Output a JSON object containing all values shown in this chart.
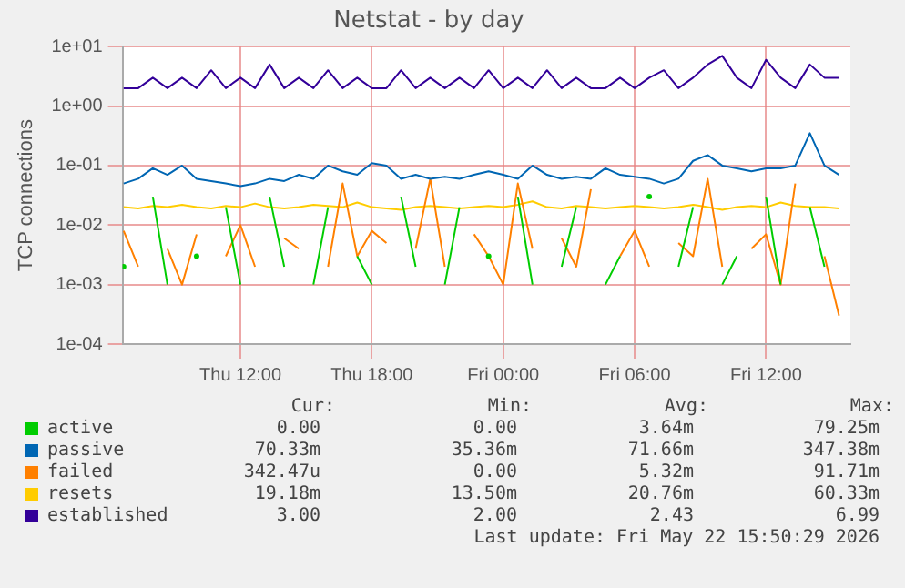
{
  "chart_data": {
    "type": "line",
    "title": "Netstat - by day",
    "ylabel": "TCP connections",
    "log": "y",
    "grid": true,
    "legend": "bottom",
    "x": [
      "2026-05-21T06:40",
      "2026-05-21T07:20",
      "2026-05-21T08:00",
      "2026-05-21T08:40",
      "2026-05-21T09:20",
      "2026-05-21T10:00",
      "2026-05-21T10:40",
      "2026-05-21T11:20",
      "2026-05-21T12:00",
      "2026-05-21T12:40",
      "2026-05-21T13:20",
      "2026-05-21T14:00",
      "2026-05-21T14:40",
      "2026-05-21T15:20",
      "2026-05-21T16:00",
      "2026-05-21T16:40",
      "2026-05-21T17:20",
      "2026-05-21T18:00",
      "2026-05-21T18:40",
      "2026-05-21T19:20",
      "2026-05-21T20:00",
      "2026-05-21T20:40",
      "2026-05-21T21:20",
      "2026-05-21T22:00",
      "2026-05-21T22:40",
      "2026-05-21T23:20",
      "2026-05-22T00:00",
      "2026-05-22T00:40",
      "2026-05-22T01:20",
      "2026-05-22T02:00",
      "2026-05-22T02:40",
      "2026-05-22T03:20",
      "2026-05-22T04:00",
      "2026-05-22T04:40",
      "2026-05-22T05:20",
      "2026-05-22T06:00",
      "2026-05-22T06:40",
      "2026-05-22T07:20",
      "2026-05-22T08:00",
      "2026-05-22T08:40",
      "2026-05-22T09:20",
      "2026-05-22T10:00",
      "2026-05-22T10:40",
      "2026-05-22T11:20",
      "2026-05-22T12:00",
      "2026-05-22T12:40",
      "2026-05-22T13:20",
      "2026-05-22T14:00",
      "2026-05-22T14:40",
      "2026-05-22T15:20"
    ],
    "xlim": [
      "2026-05-21T06:37",
      "2026-05-22T15:51"
    ],
    "xticks": [
      {
        "value": "2026-05-21T12:00",
        "label": "Thu 12:00"
      },
      {
        "value": "2026-05-21T18:00",
        "label": "Thu 18:00"
      },
      {
        "value": "2026-05-22T00:00",
        "label": "Fri 00:00"
      },
      {
        "value": "2026-05-22T06:00",
        "label": "Fri 06:00"
      },
      {
        "value": "2026-05-22T12:00",
        "label": "Fri 12:00"
      }
    ],
    "ylim": [
      0.0001,
      10
    ],
    "yticks": [
      {
        "value": 0.0001,
        "label": "1e-04"
      },
      {
        "value": 0.001,
        "label": "1e-03"
      },
      {
        "value": 0.01,
        "label": "1e-02"
      },
      {
        "value": 0.1,
        "label": "1e-01"
      },
      {
        "value": 1,
        "label": "1e+00"
      },
      {
        "value": 10,
        "label": "1e+01"
      }
    ],
    "series": [
      {
        "name": "active",
        "color": "#00cc00",
        "values": [
          0.002,
          null,
          0.03,
          0.001,
          null,
          0.003,
          null,
          0.02,
          0.001,
          null,
          0.03,
          0.002,
          null,
          0.001,
          0.02,
          null,
          0.003,
          0.001,
          null,
          0.03,
          0.002,
          null,
          0.001,
          0.02,
          null,
          0.003,
          null,
          0.03,
          0.001,
          null,
          0.002,
          0.02,
          null,
          0.001,
          0.003,
          null,
          0.03,
          null,
          0.002,
          0.02,
          null,
          0.001,
          0.003,
          null,
          0.03,
          0.001,
          null,
          0.02,
          0.002,
          null
        ]
      },
      {
        "name": "passive",
        "color": "#0066b3",
        "values": [
          0.05,
          0.06,
          0.09,
          0.07,
          0.1,
          0.06,
          0.055,
          0.05,
          0.045,
          0.05,
          0.06,
          0.055,
          0.07,
          0.06,
          0.1,
          0.08,
          0.07,
          0.11,
          0.1,
          0.06,
          0.07,
          0.06,
          0.065,
          0.06,
          0.07,
          0.08,
          0.07,
          0.06,
          0.1,
          0.07,
          0.06,
          0.065,
          0.06,
          0.09,
          0.07,
          0.065,
          0.06,
          0.05,
          0.06,
          0.12,
          0.15,
          0.1,
          0.09,
          0.08,
          0.09,
          0.09,
          0.1,
          0.35,
          0.1,
          0.07
        ]
      },
      {
        "name": "failed",
        "color": "#ff8000",
        "values": [
          0.008,
          0.002,
          null,
          0.004,
          0.001,
          0.007,
          null,
          0.003,
          0.01,
          0.002,
          null,
          0.006,
          0.004,
          null,
          0.002,
          0.05,
          0.003,
          0.008,
          0.005,
          null,
          0.004,
          0.06,
          0.002,
          null,
          0.007,
          0.003,
          0.001,
          0.05,
          0.004,
          null,
          0.006,
          0.002,
          0.04,
          null,
          0.003,
          0.008,
          0.002,
          null,
          0.005,
          0.003,
          0.06,
          0.002,
          null,
          0.004,
          0.007,
          0.001,
          0.05,
          null,
          0.003,
          0.0003
        ]
      },
      {
        "name": "resets",
        "color": "#ffcc00",
        "values": [
          0.02,
          0.019,
          0.021,
          0.02,
          0.022,
          0.02,
          0.019,
          0.021,
          0.02,
          0.023,
          0.02,
          0.019,
          0.02,
          0.022,
          0.021,
          0.02,
          0.024,
          0.02,
          0.019,
          0.018,
          0.02,
          0.021,
          0.02,
          0.019,
          0.02,
          0.021,
          0.02,
          0.022,
          0.025,
          0.02,
          0.019,
          0.021,
          0.02,
          0.019,
          0.02,
          0.021,
          0.02,
          0.019,
          0.02,
          0.022,
          0.02,
          0.018,
          0.02,
          0.021,
          0.02,
          0.024,
          0.021,
          0.02,
          0.02,
          0.019
        ]
      },
      {
        "name": "established",
        "color": "#330099",
        "values": [
          2,
          2,
          3,
          2,
          3,
          2,
          4,
          2,
          3,
          2,
          5,
          2,
          3,
          2,
          4,
          2,
          3,
          2,
          2,
          4,
          2,
          3,
          2,
          3,
          2,
          4,
          2,
          3,
          2,
          4,
          2,
          3,
          2,
          2,
          3,
          2,
          3,
          4,
          2,
          3,
          5,
          7,
          3,
          2,
          6,
          3,
          2,
          5,
          3,
          3
        ]
      }
    ],
    "annotations": [
      "Cur:",
      "Min:",
      "Avg:",
      "Max:",
      "0.00",
      "0.00",
      "3.64m",
      "79.25m",
      "70.33m",
      "35.36m",
      "71.66m",
      "347.38m",
      "342.47u",
      "0.00",
      "5.32m",
      "91.71m",
      "19.18m",
      "13.50m",
      "20.76m",
      "60.33m",
      "3.00",
      "2.00",
      "2.43",
      "6.99",
      "Last update: Fri May 22 15:50:29 2026"
    ]
  }
}
